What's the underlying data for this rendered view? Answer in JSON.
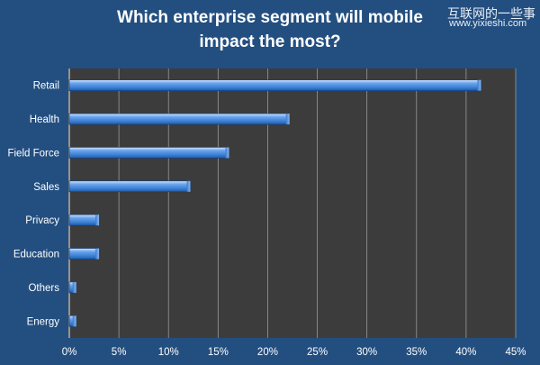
{
  "chart_data": {
    "type": "bar",
    "orientation": "horizontal",
    "title": "Which enterprise segment will mobile impact the most?",
    "title_lines": [
      "Which enterprise segment will mobile",
      "impact the most?"
    ],
    "categories": [
      "Retail",
      "Health",
      "Field Force",
      "Sales",
      "Privacy",
      "Education",
      "Others",
      "Energy"
    ],
    "values": [
      41.5,
      22.2,
      16.1,
      12.2,
      3.0,
      3.0,
      0.7,
      0.7
    ],
    "x_ticks": [
      "0%",
      "5%",
      "10%",
      "15%",
      "20%",
      "25%",
      "30%",
      "35%",
      "40%",
      "45%"
    ],
    "xlim": [
      0,
      45
    ],
    "xlabel": "",
    "ylabel": "",
    "grid": true,
    "colors": {
      "background": "#234f80",
      "plot_area": "#3c3c3c",
      "bar": "#4f8fe0",
      "bar_highlight": "#b9d6ff",
      "bar_dark": "#1f5fb0",
      "gridline": "#9a9a9a",
      "label_text": "#ffffff"
    }
  },
  "watermark": {
    "line1": "互联网的一些事",
    "line2": "www.yixieshi.com"
  }
}
